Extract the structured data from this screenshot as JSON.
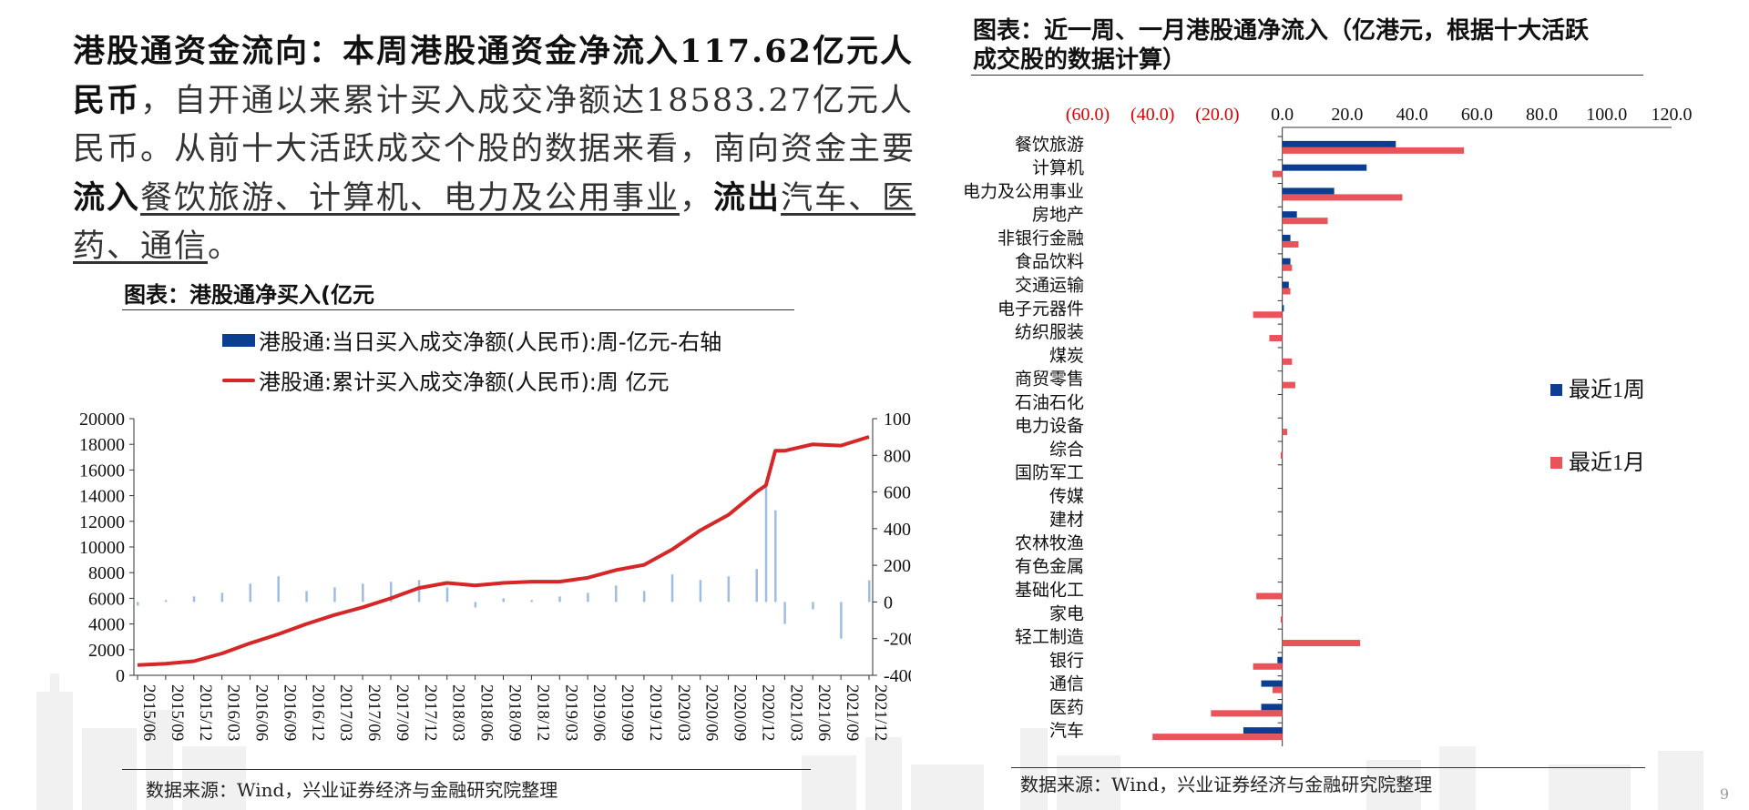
{
  "headline": {
    "p1_bold": "港股通资金流向：本周港股通资金净流入117.62亿元人民币",
    "p1_rest": "，自开通以来累计买入成交净额达18583.27亿元人民币。从前十大活跃成交个股的数据来看，南向资金主要",
    "inflow_label": "流入",
    "inflow_sectors": "餐饮旅游、计算机、电力及公用事业",
    "sep": "，",
    "outflow_label": "流出",
    "outflow_sectors": "汽车、医药、通信",
    "end": "。"
  },
  "left_chart": {
    "title": "图表：港股通净买入(亿元",
    "legend_bar": "港股通:当日买入成交净额(人民币):周-亿元-右轴",
    "legend_line": "港股通:累计买入成交净额(人民币):周 亿元",
    "source": "数据来源：Wind，兴业证券经济与金融研究院整理"
  },
  "right_chart": {
    "title_line1": "图表：近一周、一月港股通净流入（亿港元，根据十大活跃",
    "title_line2": "成交股的数据计算）",
    "legend_week": "最近1周",
    "legend_month": "最近1月",
    "source": "数据来源：Wind，兴业证券经济与金融研究院整理"
  },
  "page_number": "9",
  "colors": {
    "blue": "#0b3d91",
    "red": "#e8545a",
    "line_red": "#d62728",
    "axis_neg": "#e00000"
  },
  "chart_data": [
    {
      "type": "line",
      "title": "图表：港股通净买入(亿元",
      "x_ticks": [
        "2015/06",
        "2015/09",
        "2015/12",
        "2016/03",
        "2016/06",
        "2016/09",
        "2016/12",
        "2017/03",
        "2017/06",
        "2017/09",
        "2017/12",
        "2018/03",
        "2018/06",
        "2018/09",
        "2018/12",
        "2019/03",
        "2019/06",
        "2019/09",
        "2019/12",
        "2020/03",
        "2020/06",
        "2020/09",
        "2020/12",
        "2021/03",
        "2021/06",
        "2021/09",
        "2021/12"
      ],
      "y_left_ticks": [
        "20000",
        "18000",
        "16000",
        "14000",
        "12000",
        "10000",
        "8000",
        "6000",
        "4000",
        "2000",
        "0"
      ],
      "y_right_ticks": [
        "1000",
        "800",
        "600",
        "400",
        "200",
        "0",
        "-200",
        "-400"
      ],
      "ylim_left": [
        0,
        20000
      ],
      "ylim_right": [
        -400,
        1000
      ],
      "series": [
        {
          "name": "港股通:累计买入成交净额(人民币):周 亿元",
          "axis": "left",
          "x": [
            "2015/06",
            "2015/09",
            "2015/12",
            "2016/03",
            "2016/06",
            "2016/09",
            "2016/12",
            "2017/03",
            "2017/06",
            "2017/09",
            "2017/12",
            "2018/03",
            "2018/06",
            "2018/09",
            "2018/12",
            "2019/03",
            "2019/06",
            "2019/09",
            "2019/12",
            "2020/03",
            "2020/06",
            "2020/09",
            "2020/12",
            "2021/01",
            "2021/02",
            "2021/03",
            "2021/06",
            "2021/09",
            "2021/12"
          ],
          "values": [
            800,
            900,
            1100,
            1700,
            2500,
            3200,
            4000,
            4700,
            5300,
            6000,
            6800,
            7200,
            7000,
            7200,
            7300,
            7300,
            7600,
            8200,
            8600,
            9800,
            11300,
            12500,
            14300,
            14800,
            17500,
            17500,
            18000,
            17900,
            18583
          ]
        },
        {
          "name": "港股通:当日买入成交净额(人民币):周-亿元-右轴",
          "axis": "right",
          "type": "bar",
          "x": [
            "2015/06",
            "2015/09",
            "2015/12",
            "2016/03",
            "2016/06",
            "2016/09",
            "2016/12",
            "2017/03",
            "2017/06",
            "2017/09",
            "2017/12",
            "2018/03",
            "2018/06",
            "2018/09",
            "2018/12",
            "2019/03",
            "2019/06",
            "2019/09",
            "2019/12",
            "2020/03",
            "2020/06",
            "2020/09",
            "2020/12",
            "2021/01",
            "2021/02",
            "2021/03",
            "2021/06",
            "2021/09",
            "2021/12"
          ],
          "values": [
            -20,
            10,
            30,
            50,
            100,
            140,
            60,
            80,
            100,
            110,
            120,
            80,
            -30,
            20,
            10,
            30,
            50,
            90,
            60,
            150,
            120,
            140,
            180,
            650,
            500,
            -120,
            -40,
            -200,
            118
          ]
        }
      ]
    },
    {
      "type": "bar",
      "orientation": "horizontal",
      "title": "图表：近一周、一月港股通净流入（亿港元，根据十大活跃成交股的数据计算）",
      "x_ticks": [
        "(60.0)",
        "(40.0)",
        "(20.0)",
        "0.0",
        "20.0",
        "40.0",
        "60.0",
        "80.0",
        "100.0",
        "120.0"
      ],
      "xlim": [
        -60,
        120
      ],
      "categories": [
        "餐饮旅游",
        "计算机",
        "电力及公用事业",
        "房地产",
        "非银行金融",
        "食品饮料",
        "交通运输",
        "电子元器件",
        "纺织服装",
        "煤炭",
        "商贸零售",
        "石油石化",
        "电力设备",
        "综合",
        "国防军工",
        "传媒",
        "建材",
        "农林牧渔",
        "有色金属",
        "基础化工",
        "家电",
        "轻工制造",
        "银行",
        "通信",
        "医药",
        "汽车"
      ],
      "series": [
        {
          "name": "最近1周",
          "values": [
            35,
            26,
            16,
            4.5,
            2.5,
            2.5,
            2,
            0.5,
            0,
            0,
            0,
            0,
            0,
            0,
            0,
            0,
            0,
            0,
            0,
            0,
            0,
            0,
            -1.5,
            -6.5,
            -6.5,
            -12
          ]
        },
        {
          "name": "最近1月",
          "values": [
            56,
            -3,
            37,
            14,
            5,
            3,
            2.5,
            -9,
            -4,
            3,
            4,
            0,
            1.5,
            -0.5,
            0,
            0,
            0,
            0,
            0,
            -8,
            -0.5,
            24,
            -9,
            -3,
            -22,
            -40
          ]
        }
      ]
    }
  ]
}
